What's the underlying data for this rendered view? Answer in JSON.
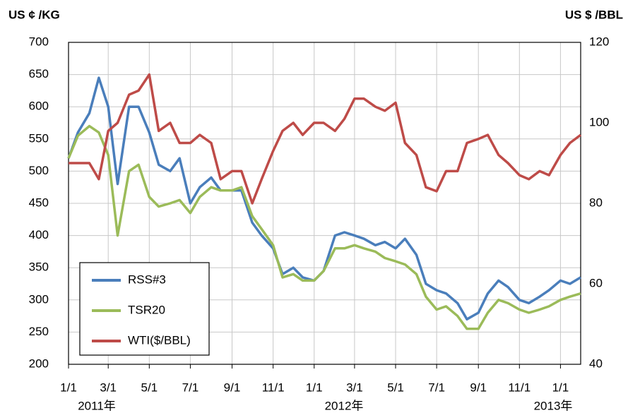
{
  "chart_data": {
    "type": "line",
    "y_label": "US ¢ /KG",
    "y2_label": "US $ /BBL",
    "x": [
      "2011-01-01",
      "2011-01-15",
      "2011-02-01",
      "2011-02-15",
      "2011-03-01",
      "2011-03-15",
      "2011-04-01",
      "2011-04-15",
      "2011-05-01",
      "2011-05-15",
      "2011-06-01",
      "2011-06-15",
      "2011-07-01",
      "2011-07-15",
      "2011-08-01",
      "2011-08-15",
      "2011-09-01",
      "2011-09-15",
      "2011-10-01",
      "2011-10-15",
      "2011-11-01",
      "2011-11-15",
      "2011-12-01",
      "2011-12-15",
      "2012-01-01",
      "2012-01-15",
      "2012-02-01",
      "2012-02-15",
      "2012-03-01",
      "2012-03-15",
      "2012-04-01",
      "2012-04-15",
      "2012-05-01",
      "2012-05-15",
      "2012-06-01",
      "2012-06-15",
      "2012-07-01",
      "2012-07-15",
      "2012-08-01",
      "2012-08-15",
      "2012-09-01",
      "2012-09-15",
      "2012-10-01",
      "2012-10-15",
      "2012-11-01",
      "2012-11-15",
      "2012-12-01",
      "2012-12-15",
      "2013-01-01",
      "2013-01-15",
      "2013-01-31"
    ],
    "series": [
      {
        "name": "RSS#3",
        "color": "#4a7ebb",
        "values": [
          520,
          560,
          590,
          645,
          600,
          480,
          600,
          600,
          560,
          510,
          500,
          520,
          450,
          475,
          490,
          470,
          470,
          470,
          420,
          400,
          380,
          340,
          350,
          335,
          330,
          345,
          400,
          405,
          400,
          395,
          385,
          390,
          380,
          395,
          370,
          325,
          315,
          310,
          295,
          270,
          280,
          310,
          330,
          320,
          300,
          295,
          305,
          315,
          330,
          325,
          335
        ]
      },
      {
        "name": "TSR20",
        "color": "#9bbb59",
        "values": [
          520,
          555,
          570,
          560,
          525,
          400,
          500,
          510,
          460,
          445,
          450,
          455,
          435,
          460,
          475,
          470,
          470,
          475,
          430,
          410,
          385,
          335,
          340,
          330,
          330,
          345,
          380,
          380,
          385,
          380,
          375,
          365,
          360,
          355,
          340,
          305,
          285,
          290,
          275,
          255,
          255,
          280,
          300,
          295,
          285,
          280,
          285,
          290,
          300,
          305,
          310
        ]
      },
      {
        "name": "WTI($/BBL)",
        "color": "#be4b48",
        "axis": "y2",
        "values": [
          90,
          90,
          90,
          86,
          98,
          100,
          107,
          108,
          112,
          98,
          100,
          95,
          95,
          97,
          95,
          86,
          88,
          88,
          80,
          86,
          93,
          98,
          100,
          97,
          100,
          100,
          98,
          101,
          106,
          106,
          104,
          103,
          105,
          95,
          92,
          84,
          83,
          88,
          88,
          95,
          96,
          97,
          92,
          90,
          87,
          86,
          88,
          87,
          92,
          95,
          97
        ]
      }
    ],
    "xlim": [
      "2011-01-01",
      "2013-01-31"
    ],
    "xticks": [
      {
        "value": "2011-01-01",
        "label": "1/1"
      },
      {
        "value": "2011-03-01",
        "label": "3/1"
      },
      {
        "value": "2011-05-01",
        "label": "5/1"
      },
      {
        "value": "2011-07-01",
        "label": "7/1"
      },
      {
        "value": "2011-09-01",
        "label": "9/1"
      },
      {
        "value": "2011-11-01",
        "label": "11/1"
      },
      {
        "value": "2012-01-01",
        "label": "1/1"
      },
      {
        "value": "2012-03-01",
        "label": "3/1"
      },
      {
        "value": "2012-05-01",
        "label": "5/1"
      },
      {
        "value": "2012-07-01",
        "label": "7/1"
      },
      {
        "value": "2012-09-01",
        "label": "9/1"
      },
      {
        "value": "2012-11-01",
        "label": "11/1"
      },
      {
        "value": "2013-01-01",
        "label": "1/1"
      }
    ],
    "year_labels": [
      "2011年",
      "2012年",
      "2013年"
    ],
    "ylim": [
      200,
      700
    ],
    "yticks": [
      200,
      250,
      300,
      350,
      400,
      450,
      500,
      550,
      600,
      650,
      700
    ],
    "y2lim": [
      40,
      120
    ],
    "y2ticks": [
      40,
      60,
      80,
      100,
      120
    ],
    "grid": true,
    "legend": "lower left"
  }
}
